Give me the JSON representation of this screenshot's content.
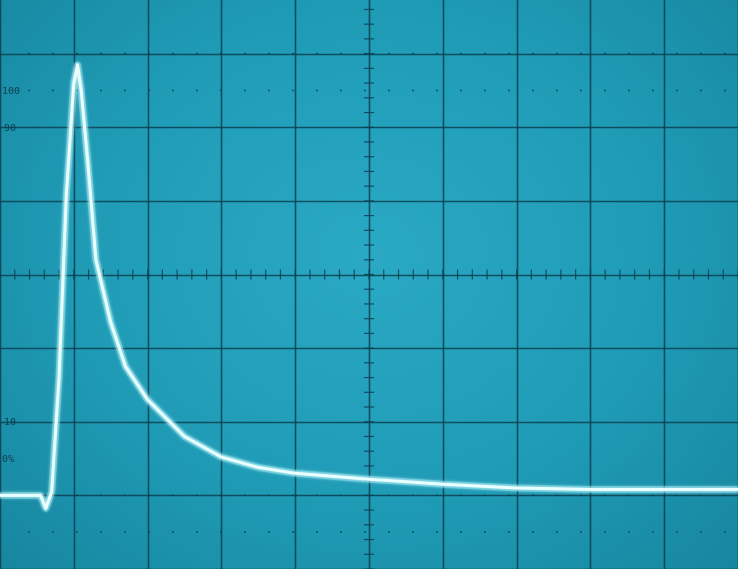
{
  "graticule": {
    "labels": {
      "top": "100",
      "upper": "90",
      "lower": "10",
      "bottom": "0%"
    },
    "colors": {
      "screen": "#1f9bb6",
      "grid": "#0b3f4f",
      "trace": "#e9ffff",
      "glow": "#7fe6f5"
    }
  },
  "chart_data": {
    "type": "line",
    "title": "",
    "xlabel": "",
    "ylabel": "",
    "grid": true,
    "xlim": [
      0,
      10
    ],
    "ylim": [
      0,
      8
    ],
    "series": [
      {
        "x": [
          0.0,
          0.4,
          0.55,
          0.62,
          0.7,
          0.8,
          0.9,
          1.0,
          1.05,
          1.1,
          1.2,
          1.3,
          1.5,
          1.7,
          2.0,
          2.5,
          3.0,
          3.5,
          4.0,
          5.0,
          6.0,
          7.0,
          8.0,
          9.0,
          10.0
        ],
        "y": [
          1.0,
          1.0,
          1.0,
          0.82,
          1.05,
          2.6,
          5.1,
          6.6,
          6.85,
          6.5,
          5.4,
          4.2,
          3.35,
          2.75,
          2.3,
          1.8,
          1.52,
          1.38,
          1.3,
          1.22,
          1.15,
          1.1,
          1.08,
          1.08,
          1.08
        ]
      }
    ]
  }
}
